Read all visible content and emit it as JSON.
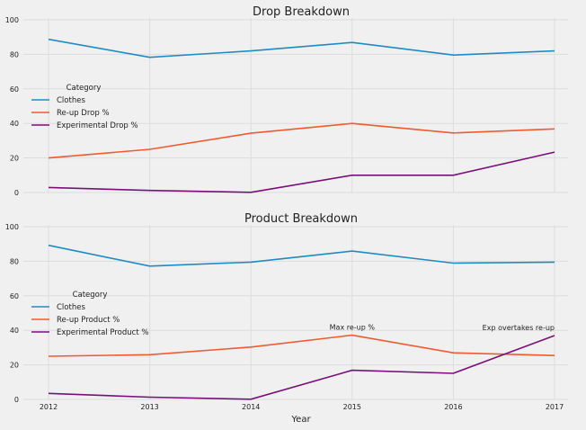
{
  "chart_data": [
    {
      "type": "line",
      "title": "Drop Breakdown",
      "xlabel": "",
      "ylabel": "",
      "x": [
        2012,
        2013,
        2014,
        2015,
        2016,
        2017
      ],
      "ylim": [
        0,
        100
      ],
      "yticks": [
        0,
        20,
        40,
        60,
        80,
        100
      ],
      "grid": true,
      "legend": {
        "title": "Category",
        "placement": "center-left"
      },
      "series": [
        {
          "name": "Clothes",
          "color": "#1f8bc4",
          "values": [
            88.7,
            78.3,
            82.0,
            86.9,
            79.6,
            82.0
          ]
        },
        {
          "name": "Re-up Drop %",
          "color": "#f05a30",
          "values": [
            20.0,
            25.0,
            34.3,
            40.0,
            34.5,
            36.8
          ]
        },
        {
          "name": "Experimental Drop %",
          "color": "#7a0f7a",
          "values": [
            2.9,
            1.2,
            0.1,
            10.0,
            10.0,
            23.4
          ]
        }
      ],
      "annotations": []
    },
    {
      "type": "line",
      "title": "Product Breakdown",
      "xlabel": "Year",
      "ylabel": "",
      "x": [
        2012,
        2013,
        2014,
        2015,
        2016,
        2017
      ],
      "ylim": [
        0,
        100
      ],
      "yticks": [
        0,
        20,
        40,
        60,
        80,
        100
      ],
      "grid": true,
      "legend": {
        "title": "Category",
        "placement": "center-left"
      },
      "series": [
        {
          "name": "Clothes",
          "color": "#1f8bc4",
          "values": [
            89.2,
            77.2,
            79.5,
            85.9,
            78.9,
            79.5
          ]
        },
        {
          "name": "Re-up Product %",
          "color": "#f05a30",
          "values": [
            25.0,
            25.9,
            30.3,
            37.2,
            27.0,
            25.4
          ]
        },
        {
          "name": "Experimental Product %",
          "color": "#7a0f7a",
          "values": [
            3.5,
            1.3,
            0.1,
            16.9,
            15.1,
            37.0
          ]
        }
      ],
      "annotations": [
        {
          "text": "Max re-up %",
          "x": 2015,
          "y": 37.2
        },
        {
          "text": "Exp overtakes re-up",
          "x": 2017,
          "y": 37.0
        }
      ]
    }
  ]
}
